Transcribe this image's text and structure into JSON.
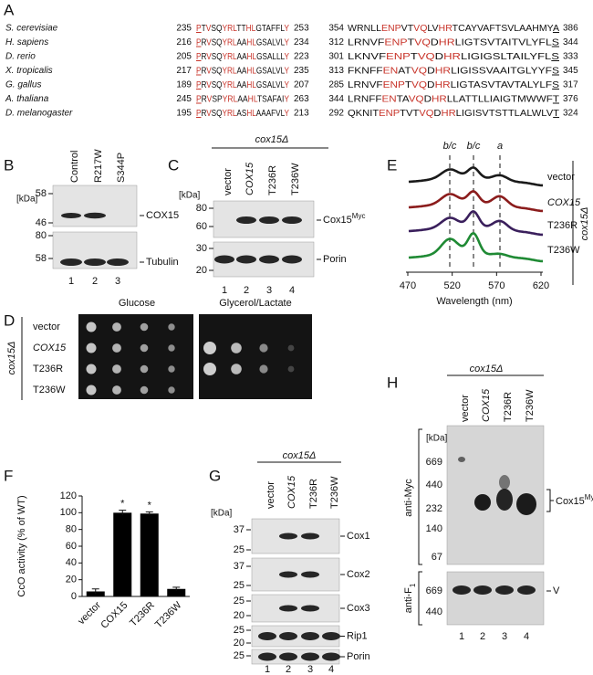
{
  "panel_a": {
    "label": "A",
    "rows": [
      {
        "species": "S. cerevisiae",
        "start1": 235,
        "seq1": "PTVSQYRLTTHLGTAFFLY",
        "end1": 253,
        "start2": 354,
        "seq2": "WRNLLENPVTVQLVHRTCAYVAFTSVLAAHMYA",
        "end2": 386,
        "red1": [
          0,
          2,
          5,
          6,
          7,
          10,
          11,
          18
        ],
        "red2": [
          5,
          6,
          7,
          10,
          11,
          14,
          15
        ]
      },
      {
        "species": "H. sapiens",
        "start1": 216,
        "seq1": "PRVSQYRLAAHLGSALVLY",
        "end1": 234,
        "start2": 312,
        "seq2": "LRNVFENPTVQDHRLIGTSVTAITVLYFLS",
        "end2": 344,
        "red1": [
          0,
          2,
          5,
          6,
          7,
          10,
          11,
          18
        ],
        "red2": [
          5,
          6,
          7,
          9,
          10,
          12,
          13
        ]
      },
      {
        "species": "D. rerio",
        "start1": 205,
        "seq1": "PRVSQYRLAAHLGSALLLY",
        "end1": 223,
        "start2": 301,
        "seq2": "LKNVFENPTVQDHRLIGIGSLTAILYFLS",
        "end2": 333,
        "red1": [
          0,
          2,
          5,
          6,
          7,
          10,
          11,
          18
        ],
        "red2": [
          5,
          6,
          7,
          9,
          10,
          12,
          13
        ]
      },
      {
        "species": "X. tropicalis",
        "start1": 217,
        "seq1": "PRVSQYRLAAHLGSALVLY",
        "end1": 235,
        "start2": 313,
        "seq2": "FKNFFENATVQDHRLIGISSVAAITGLYYFS",
        "end2": 345,
        "red1": [
          0,
          2,
          5,
          6,
          7,
          10,
          11,
          18
        ],
        "red2": [
          5,
          6,
          9,
          10,
          12,
          13
        ]
      },
      {
        "species": "G. gallus",
        "start1": 189,
        "seq1": "PRVSQYRLAAHLGSALVLY",
        "end1": 207,
        "start2": 285,
        "seq2": "LRNVFENPTVQDHRLIGTASVTAVTALYLFS",
        "end2": 317,
        "red1": [
          0,
          2,
          5,
          6,
          7,
          10,
          11,
          18
        ],
        "red2": [
          5,
          6,
          7,
          9,
          10,
          12,
          13
        ]
      },
      {
        "species": "A. thaliana",
        "start1": 245,
        "seq1": "PRVSPYRLAAHLTSAFAIY",
        "end1": 263,
        "start2": 344,
        "seq2": "LRNFFENTAVQDHRLLATTLLIAIGTMWWFT",
        "end2": 376,
        "red1": [
          0,
          2,
          5,
          6,
          7,
          10,
          11,
          18
        ],
        "red2": [
          5,
          6,
          9,
          10,
          12,
          13
        ]
      },
      {
        "species": "D. melanogaster",
        "start1": 195,
        "seq1": "PRVSQYRLASHLAAAFVLY",
        "end1": 213,
        "start2": 292,
        "seq2": "QKNITENPTVTVQDHRLIGISVTSTTLALWLVT",
        "end2": 324,
        "red1": [
          0,
          2,
          5,
          6,
          7,
          10,
          11,
          18
        ],
        "red2": [
          5,
          6,
          7,
          11,
          12,
          14,
          15
        ]
      }
    ]
  },
  "panel_b": {
    "label": "B",
    "unit": "[kDa]",
    "lanes": [
      "Control",
      "R217W",
      "S344P"
    ],
    "blots": [
      {
        "markers": [
          58,
          46
        ],
        "band": "COX15"
      },
      {
        "markers": [
          80,
          58
        ],
        "band": "Tubulin"
      }
    ],
    "lane_numbers": [
      1,
      2,
      3
    ]
  },
  "panel_c": {
    "label": "C",
    "strain": "cox15Δ",
    "unit": "[kDa]",
    "lanes": [
      "vector",
      "COX15",
      "T236R",
      "T236W"
    ],
    "blots": [
      {
        "markers": [
          80,
          60
        ],
        "band": {
          "text": "Cox15",
          "sup": "Myc"
        }
      },
      {
        "markers": [
          30,
          20
        ],
        "band": "Porin"
      }
    ],
    "lane_numbers": [
      1,
      2,
      3,
      4
    ]
  },
  "panel_d": {
    "label": "D",
    "media": [
      "Glucose",
      "Glycerol/Lactate"
    ],
    "strain": "cox15Δ",
    "rows": [
      "vector",
      "COX15",
      "T236R",
      "T236W"
    ]
  },
  "panel_e": {
    "label": "E",
    "peaks": [
      "b/c",
      "b/c",
      "a"
    ],
    "traces": [
      {
        "name": "vector",
        "color": "#1a1a1a"
      },
      {
        "name": "COX15",
        "color": "#8b1c1c"
      },
      {
        "name": "T236R",
        "color": "#3a1f5c"
      },
      {
        "name": "T236W",
        "color": "#1f8a34"
      }
    ],
    "strain": "cox15Δ",
    "xticks": [
      470,
      520,
      570,
      620
    ],
    "xlabel": "Wavelength (nm)"
  },
  "panel_f": {
    "label": "F",
    "chart_data": {
      "type": "bar",
      "ylabel": "CcO activity (% of WT)",
      "categories": [
        "vector",
        "COX15",
        "T236R",
        "T236W"
      ],
      "values": [
        6,
        100,
        99,
        9
      ],
      "errors": [
        3,
        3,
        2,
        2
      ],
      "significance": [
        null,
        "*",
        "*",
        null
      ],
      "color": "#000000",
      "ylim": [
        0,
        120
      ],
      "yticks": [
        0,
        20,
        40,
        60,
        80,
        100,
        120
      ]
    }
  },
  "panel_g": {
    "label": "G",
    "strain": "cox15Δ",
    "unit": "[kDa]",
    "lanes": [
      "vector",
      "COX15",
      "T236R",
      "T236W"
    ],
    "blots": [
      {
        "markers": [
          37,
          25
        ],
        "band": "Cox1"
      },
      {
        "markers": [
          37,
          25
        ],
        "band": "Cox2"
      },
      {
        "markers": [
          25,
          20
        ],
        "band": "Cox3"
      },
      {
        "markers": [
          25,
          20
        ],
        "band": "Rip1"
      },
      {
        "markers": [
          25
        ],
        "band": "Porin"
      }
    ],
    "lane_numbers": [
      1,
      2,
      3,
      4
    ]
  },
  "panel_h": {
    "label": "H",
    "strain": "cox15Δ",
    "unit": "[kDa]",
    "lanes": [
      "vector",
      "COX15",
      "T236R",
      "T236W"
    ],
    "blots": [
      {
        "antibody": "anti-Myc",
        "markers": [
          669,
          440,
          232,
          140,
          67
        ],
        "band": {
          "text": "Cox15",
          "sup": "Myc"
        }
      },
      {
        "antibody": {
          "text": "anti-F",
          "sub": "1"
        },
        "markers": [
          669,
          440
        ],
        "band": "V"
      }
    ],
    "lane_numbers": [
      1,
      2,
      3,
      4
    ]
  }
}
